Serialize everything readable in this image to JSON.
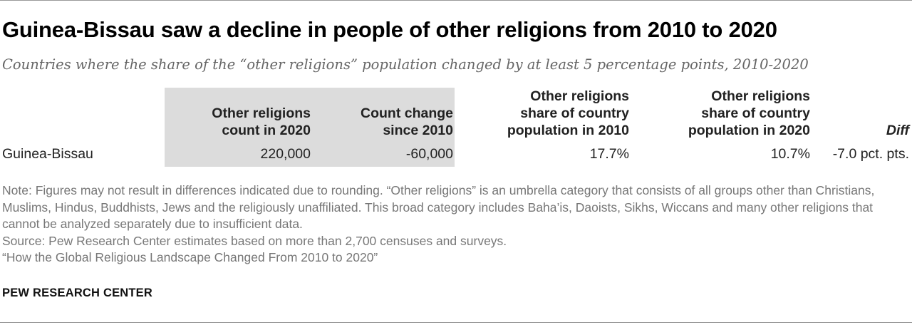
{
  "title": "Guinea-Bissau saw a decline in people of other religions from 2010 to 2020",
  "subtitle": "Countries where the share of the “other religions” population changed by at least 5 percentage points, 2010-2020",
  "chart_data": {
    "type": "table",
    "columns": [
      "",
      "Other religions\ncount in 2020",
      "Count change\nsince 2010",
      "Other religions\nshare of country\npopulation in 2010",
      "Other religions\nshare of country\npopulation in 2020",
      "Diff"
    ],
    "rows": [
      {
        "country": "Guinea-Bissau",
        "count_2020": "220,000",
        "count_change": "-60,000",
        "share_2010": "17.7%",
        "share_2020": "10.7%",
        "diff": "-7.0 pct. pts."
      }
    ]
  },
  "notes": [
    "Note: Figures may not result in differences indicated due to rounding. “Other religions” is an umbrella category that consists of all groups other than Christians, Muslims, Hindus, Buddhists, Jews and the religiously unaffiliated. This broad category includes Baha’is, Daoists, Sikhs, Wiccans and many other religions that cannot be analyzed separately due to insufficient data.",
    "Source: Pew Research Center estimates based on more than 2,700 censuses and surveys.",
    "“How the Global Religious Landscape Changed From 2010 to 2020”"
  ],
  "brand": "PEW RESEARCH CENTER",
  "colors": {
    "shade": "#dcdcdc",
    "muted": "#777777"
  }
}
